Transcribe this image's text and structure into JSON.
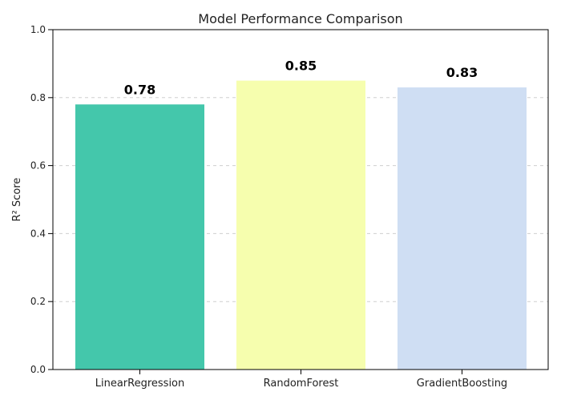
{
  "chart_data": {
    "type": "bar",
    "title": "Model Performance Comparison",
    "xlabel": "",
    "ylabel": "R² Score",
    "categories": [
      "LinearRegression",
      "RandomForest",
      "GradientBoosting"
    ],
    "values": [
      0.78,
      0.85,
      0.83
    ],
    "value_labels": [
      "0.78",
      "0.85",
      "0.83"
    ],
    "colors": [
      "#44c7ab",
      "#f6feae",
      "#cfdef3"
    ],
    "ylim": [
      0,
      1.0
    ],
    "yticks": [
      0.0,
      0.2,
      0.4,
      0.6,
      0.8,
      1.0
    ],
    "ytick_labels": [
      "0.0",
      "0.2",
      "0.4",
      "0.6",
      "0.8",
      "1.0"
    ],
    "grid": {
      "axis": "y",
      "style": "dashed"
    },
    "legend": "none"
  }
}
